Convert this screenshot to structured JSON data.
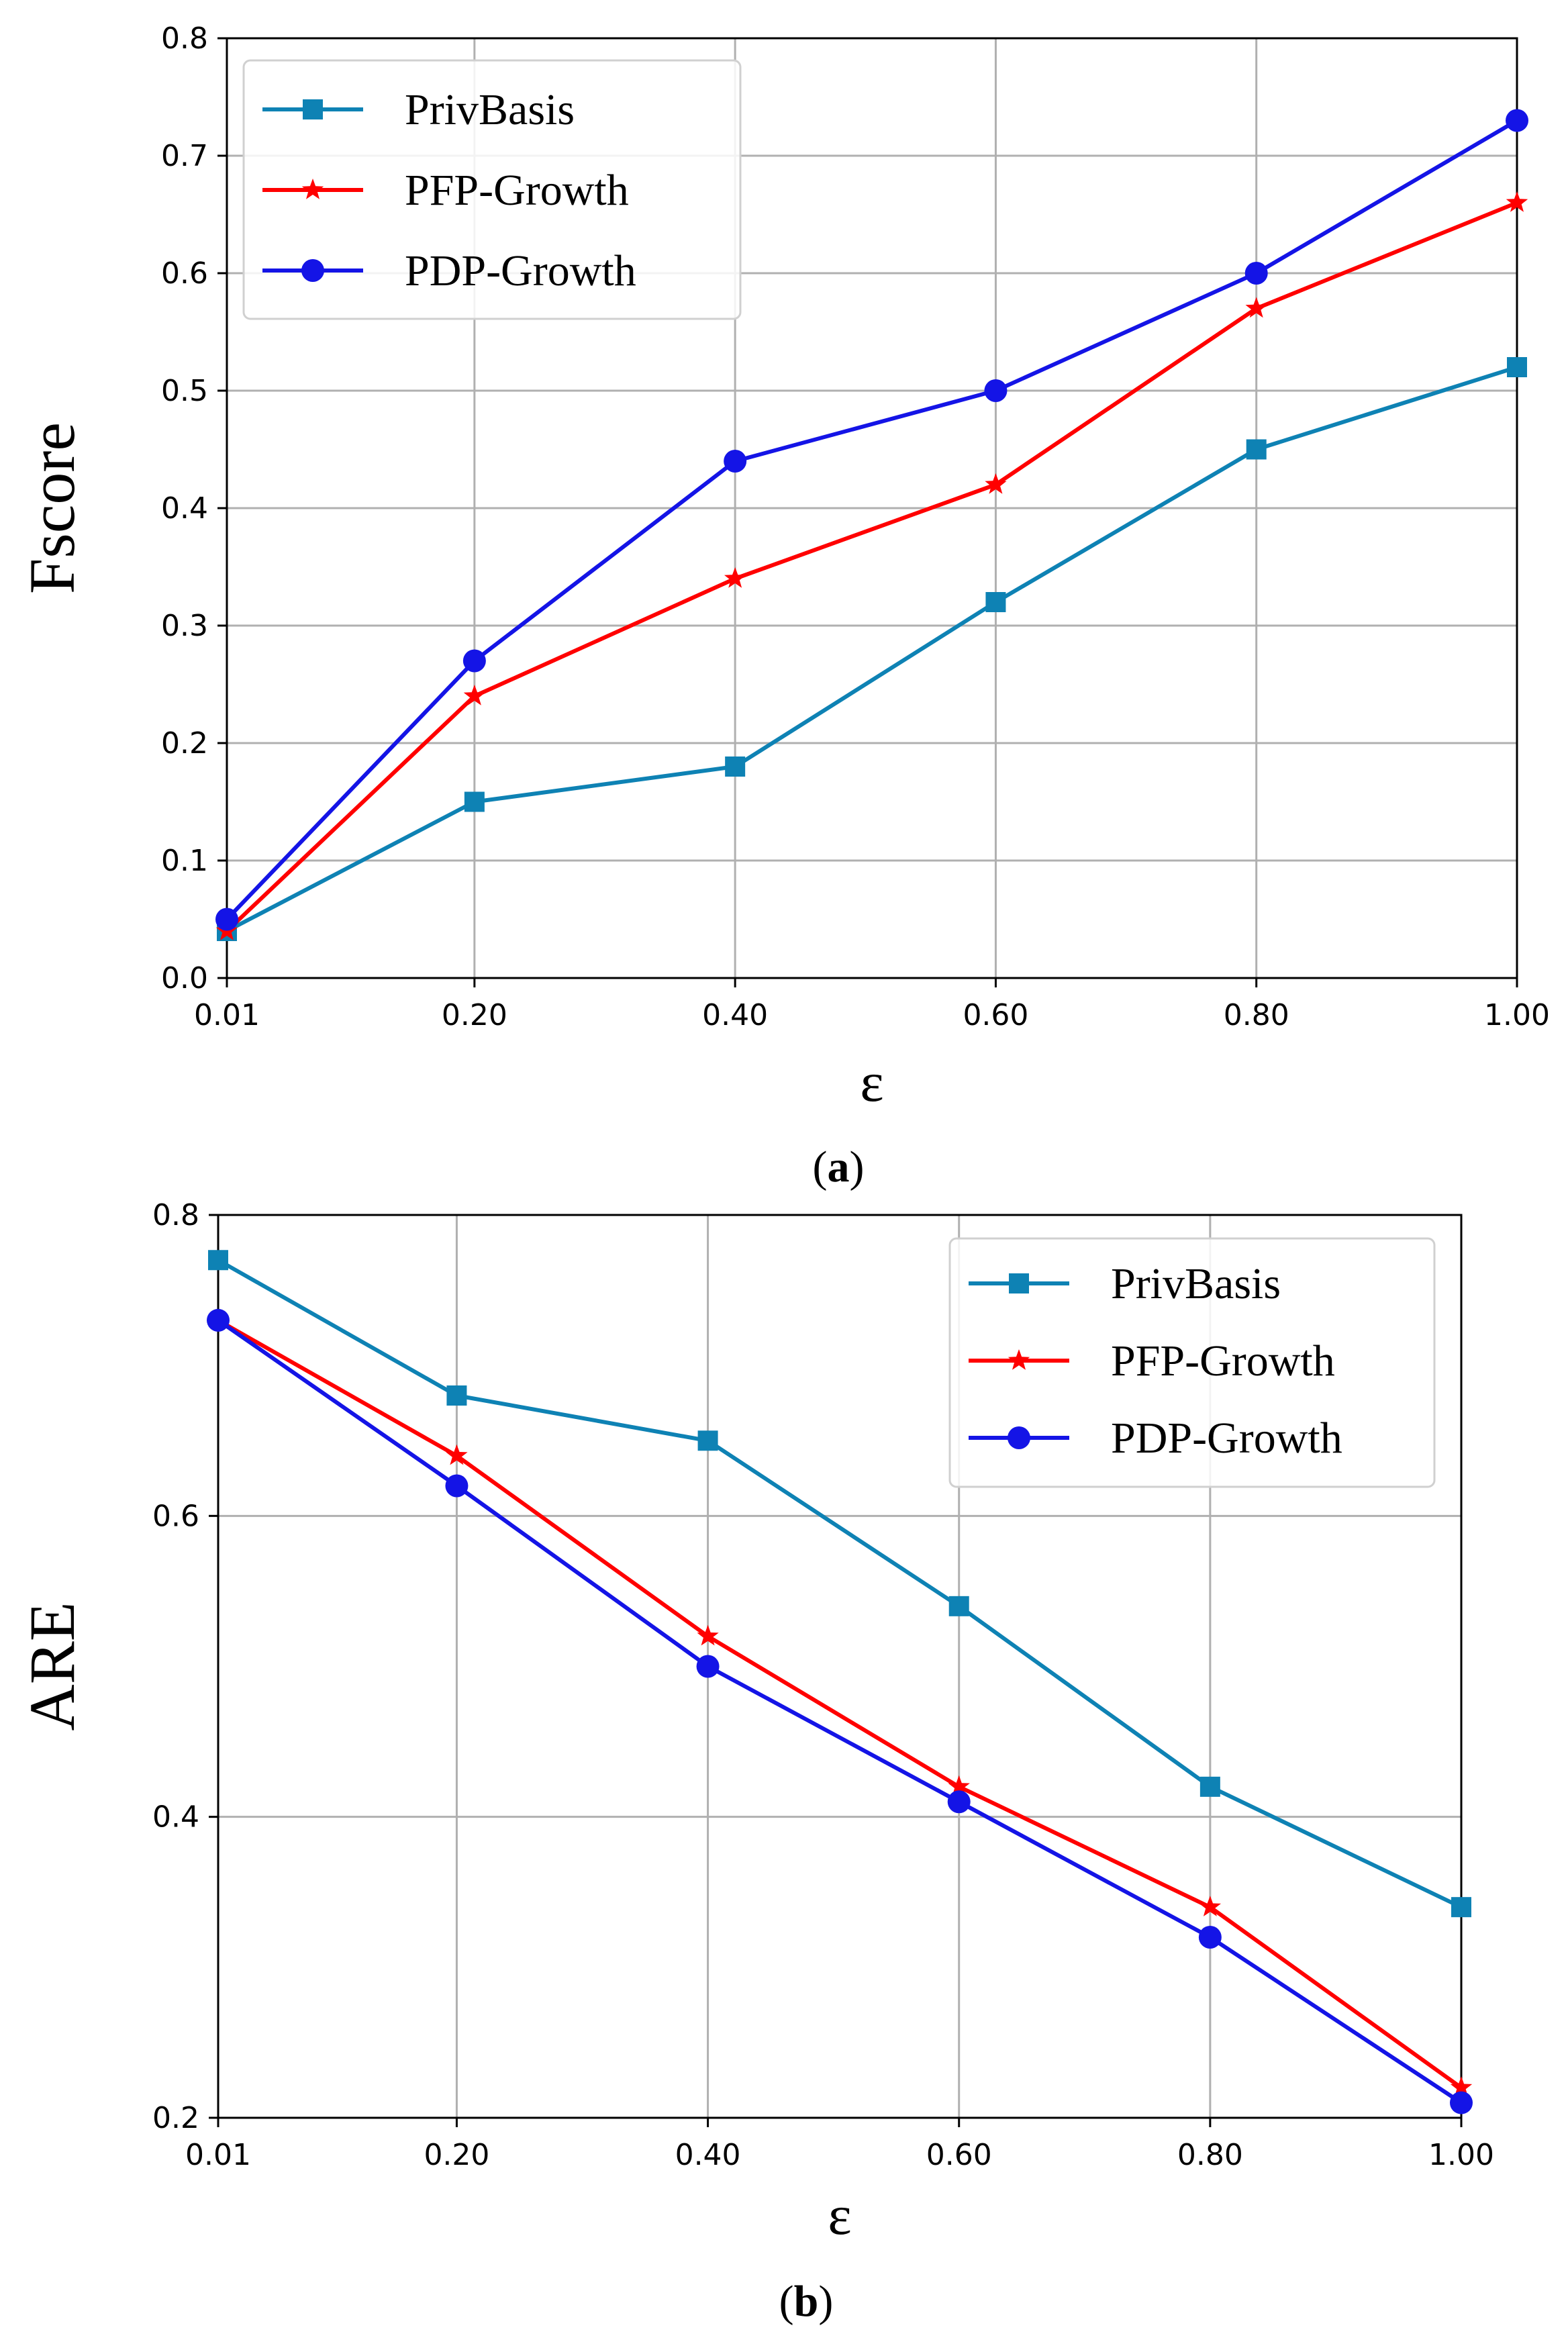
{
  "colors": {
    "PrivBasis": "#0e82b4",
    "PFP-Growth": "#ff0000",
    "PDP-Growth": "#1414e6",
    "grid": "#b0b0b0",
    "axes": "#000000"
  },
  "chart_data": [
    {
      "type": "line",
      "caption": "(a)",
      "caption_label": "a",
      "xlabel": "ε",
      "ylabel": "Fscore",
      "x": [
        0.01,
        0.2,
        0.4,
        0.6,
        0.8,
        1.0
      ],
      "x_tick_labels": [
        "0.01",
        "0.20",
        "0.40",
        "0.60",
        "0.80",
        "1.00"
      ],
      "xlim": [
        0.01,
        1.0
      ],
      "ylim": [
        0.0,
        0.8
      ],
      "y_ticks": [
        0.0,
        0.1,
        0.2,
        0.3,
        0.4,
        0.5,
        0.6,
        0.7,
        0.8
      ],
      "y_tick_labels": [
        "0.0",
        "0.1",
        "0.2",
        "0.3",
        "0.4",
        "0.5",
        "0.6",
        "0.7",
        "0.8"
      ],
      "grid": true,
      "legend_position": "top-left",
      "series": [
        {
          "name": "PrivBasis",
          "marker": "square",
          "values": [
            0.04,
            0.15,
            0.18,
            0.32,
            0.45,
            0.52
          ]
        },
        {
          "name": "PFP-Growth",
          "marker": "star",
          "values": [
            0.04,
            0.24,
            0.34,
            0.42,
            0.57,
            0.66
          ]
        },
        {
          "name": "PDP-Growth",
          "marker": "circle",
          "values": [
            0.05,
            0.27,
            0.44,
            0.5,
            0.6,
            0.73
          ]
        }
      ]
    },
    {
      "type": "line",
      "caption": "(b)",
      "caption_label": "b",
      "xlabel": "ε",
      "ylabel": "ARE",
      "x": [
        0.01,
        0.2,
        0.4,
        0.6,
        0.8,
        1.0
      ],
      "x_tick_labels": [
        "0.01",
        "0.20",
        "0.40",
        "0.60",
        "0.80",
        "1.00"
      ],
      "xlim": [
        0.01,
        1.0
      ],
      "ylim": [
        0.2,
        0.8
      ],
      "y_ticks": [
        0.2,
        0.4,
        0.6,
        0.8
      ],
      "y_tick_labels": [
        "0.2",
        "0.4",
        "0.6",
        "0.8"
      ],
      "grid": true,
      "legend_position": "top-right",
      "series": [
        {
          "name": "PrivBasis",
          "marker": "square",
          "values": [
            0.77,
            0.68,
            0.65,
            0.54,
            0.42,
            0.34
          ]
        },
        {
          "name": "PFP-Growth",
          "marker": "star",
          "values": [
            0.73,
            0.64,
            0.52,
            0.42,
            0.34,
            0.22
          ]
        },
        {
          "name": "PDP-Growth",
          "marker": "circle",
          "values": [
            0.73,
            0.62,
            0.5,
            0.41,
            0.32,
            0.21
          ]
        }
      ]
    }
  ]
}
